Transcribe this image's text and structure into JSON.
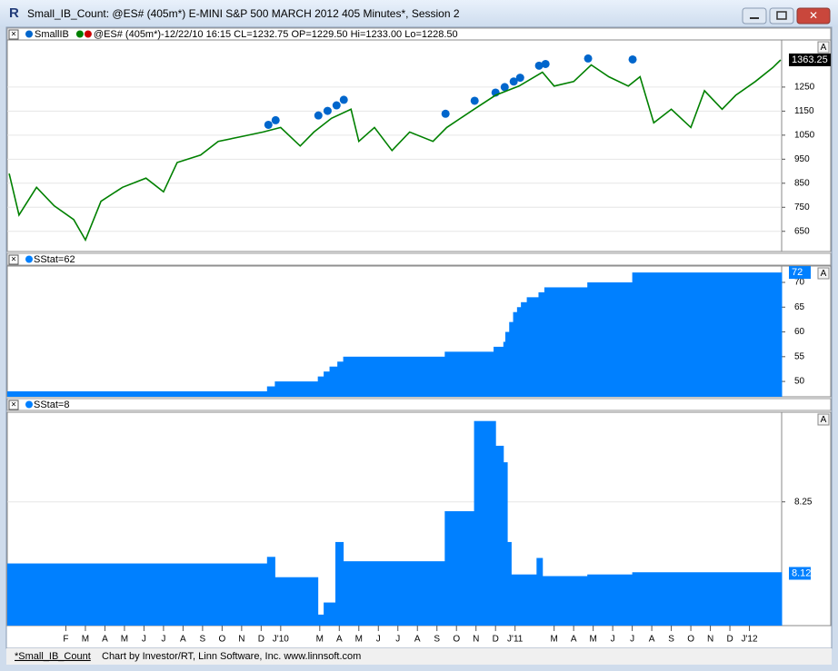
{
  "window": {
    "icon": "R",
    "title": "Small_IB_Count: @ES# (405m*) E-MINI S&P 500 MARCH 2012 405 Minutes*, Session 2"
  },
  "chart_data": [
    {
      "type": "line",
      "button": "A",
      "color": "#008000",
      "xlim": [
        -2,
        37.65
      ],
      "ylim": [
        566,
        1446
      ],
      "yticks": [
        650,
        750,
        850,
        950,
        1050,
        1150,
        1250
      ],
      "grid": true,
      "last_value": 1363.25,
      "series": [
        {
          "name": "SmallIB",
          "color": "#0066cc",
          "marker": true,
          "x": [
            11.37,
            11.74,
            13.93,
            14.4,
            14.86,
            15.23,
            20.44,
            21.93,
            23,
            23.47,
            23.93,
            24.26,
            25.23,
            25.56,
            27.74,
            30.02
          ],
          "values": [
            1093,
            1112,
            1132,
            1151,
            1174,
            1197,
            1139,
            1193,
            1227,
            1250,
            1273,
            1289,
            1339,
            1346,
            1369,
            1365
          ]
        },
        {
          "name": "@ES# (405m*)-12/22/10 16:15 CL=1232.75 OP=1229.50 Hi=1233.00 Lo=1228.50",
          "color": "#008000",
          "marker": false,
          "x": [
            -1.9,
            -1.4,
            -0.5,
            0.4,
            1.4,
            2,
            2.8,
            3.9,
            5.1,
            6,
            6.7,
            7.9,
            8.8,
            10,
            11.1,
            12,
            13,
            13.7,
            14.6,
            15.6,
            16,
            16.8,
            17.7,
            18.6,
            19.8,
            20.5,
            21.9,
            23,
            24.2,
            25.4,
            26,
            27,
            27.9,
            28.8,
            29.8,
            30.4,
            31.1,
            32,
            33,
            33.7,
            34.6,
            35.3,
            36.3,
            37.2,
            37.6
          ],
          "values": [
            890,
            718,
            833,
            756,
            699,
            614,
            775,
            833,
            871,
            814,
            936,
            967,
            1024,
            1044,
            1063,
            1082,
            1005,
            1063,
            1120,
            1158,
            1024,
            1082,
            986,
            1063,
            1024,
            1082,
            1158,
            1216,
            1254,
            1312,
            1254,
            1273,
            1342,
            1293,
            1254,
            1293,
            1101,
            1158,
            1082,
            1235,
            1158,
            1216,
            1273,
            1331,
            1363
          ]
        }
      ]
    },
    {
      "type": "step_area",
      "title": "SStat=62",
      "button": "A",
      "color": "#0080ff",
      "xlim": [
        -2,
        37.65
      ],
      "ylim": [
        46.9,
        73.3
      ],
      "yticks": [
        50,
        55,
        60,
        65,
        70
      ],
      "grid": false,
      "last_value": 72,
      "x": [
        -2,
        11.3,
        11.7,
        13.9,
        14.2,
        14.5,
        14.9,
        15.2,
        20.4,
        22.9,
        23.4,
        23.5,
        23.7,
        23.9,
        24.1,
        24.3,
        24.6,
        25.2,
        25.5,
        27.7,
        30
      ],
      "values": [
        48,
        49,
        50,
        51,
        52,
        53,
        54,
        55,
        56,
        57,
        58,
        60,
        62,
        64,
        65,
        66,
        67,
        68,
        69,
        70,
        72
      ]
    },
    {
      "type": "step_area",
      "title": "SStat=8",
      "button": "A",
      "color": "#0080ff",
      "xlim": [
        -2,
        37.65
      ],
      "ylim": [
        8.025,
        8.413
      ],
      "yticks": [
        8.25
      ],
      "grid": true,
      "last_value": 8.12,
      "x": [
        -2,
        11.3,
        11.7,
        13.9,
        14.2,
        14.8,
        15.2,
        20.4,
        21.9,
        23,
        23.4,
        23.6,
        23.8,
        25.1,
        25.4,
        27.7,
        30
      ],
      "values": [
        8.138,
        8.15,
        8.113,
        8.045,
        8.067,
        8.177,
        8.142,
        8.233,
        8.397,
        8.352,
        8.322,
        8.177,
        8.118,
        8.148,
        8.115,
        8.118,
        8.122
      ],
      "xticks": [
        {
          "value": 1,
          "label": "F"
        },
        {
          "value": 2,
          "label": "M"
        },
        {
          "value": 3,
          "label": "A"
        },
        {
          "value": 4,
          "label": "M"
        },
        {
          "value": 5,
          "label": "J"
        },
        {
          "value": 6,
          "label": "J"
        },
        {
          "value": 7,
          "label": "A"
        },
        {
          "value": 8,
          "label": "S"
        },
        {
          "value": 9,
          "label": "O"
        },
        {
          "value": 10,
          "label": "N"
        },
        {
          "value": 11,
          "label": "D"
        },
        {
          "value": 12,
          "label": "J'10"
        },
        {
          "value": 14,
          "label": "M"
        },
        {
          "value": 15,
          "label": "A"
        },
        {
          "value": 16,
          "label": "M"
        },
        {
          "value": 17,
          "label": "J"
        },
        {
          "value": 18,
          "label": "J"
        },
        {
          "value": 19,
          "label": "A"
        },
        {
          "value": 20,
          "label": "S"
        },
        {
          "value": 21,
          "label": "O"
        },
        {
          "value": 22,
          "label": "N"
        },
        {
          "value": 23,
          "label": "D"
        },
        {
          "value": 24,
          "label": "J'11"
        },
        {
          "value": 26,
          "label": "M"
        },
        {
          "value": 27,
          "label": "A"
        },
        {
          "value": 28,
          "label": "M"
        },
        {
          "value": 29,
          "label": "J"
        },
        {
          "value": 30,
          "label": "J"
        },
        {
          "value": 31,
          "label": "A"
        },
        {
          "value": 32,
          "label": "S"
        },
        {
          "value": 33,
          "label": "O"
        },
        {
          "value": 34,
          "label": "N"
        },
        {
          "value": 35,
          "label": "D"
        },
        {
          "value": 36,
          "label": "J'12"
        }
      ]
    }
  ],
  "footer": {
    "tab": "*Small_IB_Count",
    "credit": "Chart by Investor/RT, Linn Software, Inc. www.linnsoft.com"
  }
}
